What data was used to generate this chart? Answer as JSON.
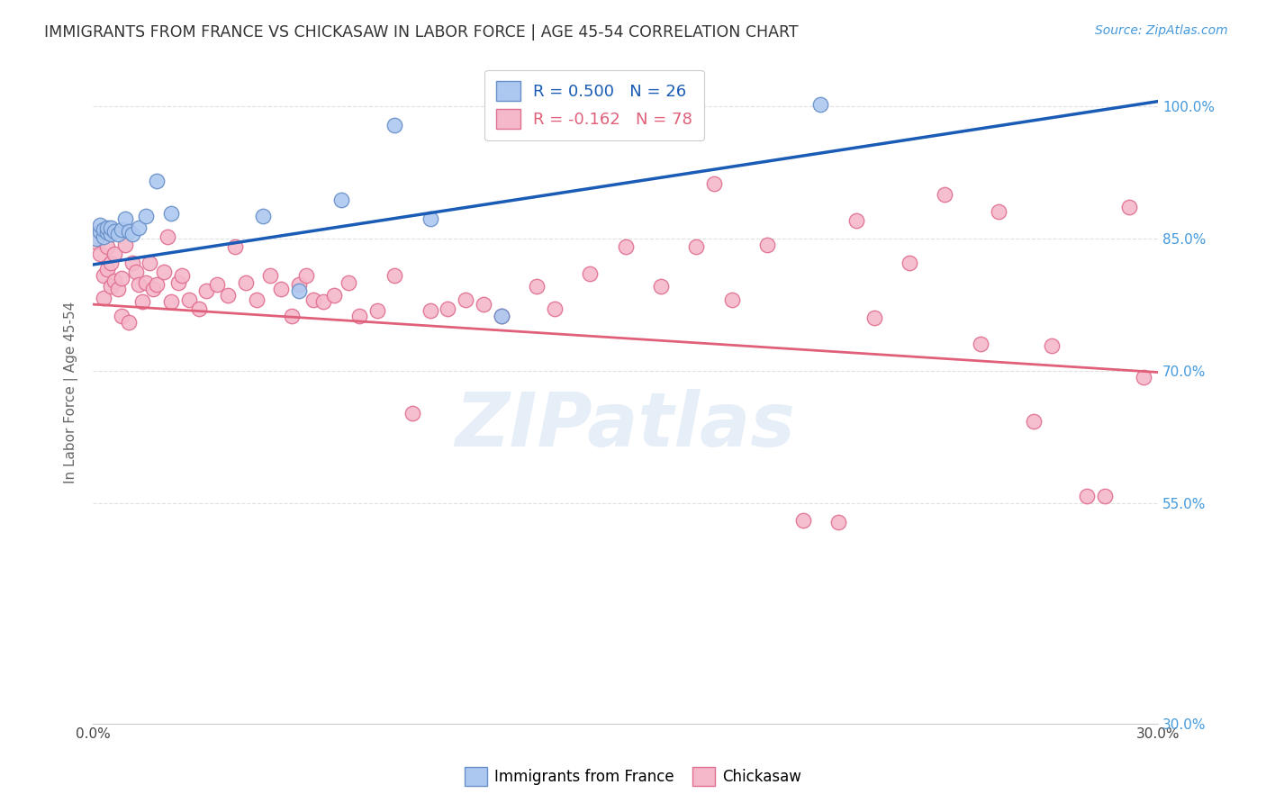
{
  "title": "IMMIGRANTS FROM FRANCE VS CHICKASAW IN LABOR FORCE | AGE 45-54 CORRELATION CHART",
  "source": "Source: ZipAtlas.com",
  "ylabel": "In Labor Force | Age 45-54",
  "xmin": 0.0,
  "xmax": 0.3,
  "ymin": 0.3,
  "ymax": 1.05,
  "xticks": [
    0.0,
    0.05,
    0.1,
    0.15,
    0.2,
    0.25,
    0.3
  ],
  "xticklabels": [
    "0.0%",
    "",
    "",
    "",
    "",
    "",
    "30.0%"
  ],
  "yticks": [
    0.3,
    0.55,
    0.7,
    0.85,
    1.0
  ],
  "yticklabels": [
    "30.0%",
    "55.0%",
    "70.0%",
    "85.0%",
    "100.0%"
  ],
  "france_R": 0.5,
  "france_N": 26,
  "chickasaw_R": -0.162,
  "chickasaw_N": 78,
  "legend_label_france": "Immigrants from France",
  "legend_label_chickasaw": "Chickasaw",
  "france_color": "#adc8f0",
  "chickasaw_color": "#f5b8ca",
  "france_edge": "#6890c8",
  "chickasaw_edge": "#e07090",
  "france_line_color": "#1a5bb5",
  "chickasaw_line_color": "#e0607a",
  "france_line_x0": 0.0,
  "france_line_y0": 0.82,
  "france_line_x1": 0.3,
  "france_line_y1": 1.005,
  "chickasaw_line_x0": 0.0,
  "chickasaw_line_y0": 0.775,
  "chickasaw_line_x1": 0.3,
  "chickasaw_line_y1": 0.698,
  "france_points_x": [
    0.001,
    0.002,
    0.002,
    0.003,
    0.003,
    0.004,
    0.004,
    0.005,
    0.005,
    0.006,
    0.007,
    0.008,
    0.009,
    0.01,
    0.011,
    0.013,
    0.015,
    0.018,
    0.022,
    0.048,
    0.058,
    0.07,
    0.085,
    0.095,
    0.115,
    0.205
  ],
  "france_points_y": [
    0.85,
    0.858,
    0.865,
    0.852,
    0.86,
    0.857,
    0.862,
    0.855,
    0.862,
    0.858,
    0.855,
    0.86,
    0.872,
    0.858,
    0.855,
    0.862,
    0.875,
    0.915,
    0.878,
    0.875,
    0.79,
    0.893,
    0.978,
    0.872,
    0.762,
    1.002
  ],
  "chickasaw_points_x": [
    0.001,
    0.002,
    0.002,
    0.003,
    0.003,
    0.004,
    0.004,
    0.005,
    0.005,
    0.006,
    0.006,
    0.007,
    0.008,
    0.008,
    0.009,
    0.01,
    0.011,
    0.012,
    0.013,
    0.014,
    0.015,
    0.016,
    0.017,
    0.018,
    0.02,
    0.021,
    0.022,
    0.024,
    0.025,
    0.027,
    0.03,
    0.032,
    0.035,
    0.038,
    0.04,
    0.043,
    0.046,
    0.05,
    0.053,
    0.056,
    0.058,
    0.06,
    0.062,
    0.065,
    0.068,
    0.072,
    0.075,
    0.08,
    0.085,
    0.09,
    0.095,
    0.1,
    0.105,
    0.11,
    0.115,
    0.125,
    0.13,
    0.14,
    0.15,
    0.16,
    0.17,
    0.175,
    0.18,
    0.19,
    0.2,
    0.21,
    0.215,
    0.22,
    0.23,
    0.24,
    0.25,
    0.255,
    0.265,
    0.27,
    0.28,
    0.285,
    0.292,
    0.296
  ],
  "chickasaw_points_y": [
    0.845,
    0.858,
    0.832,
    0.782,
    0.808,
    0.84,
    0.815,
    0.795,
    0.822,
    0.832,
    0.802,
    0.792,
    0.762,
    0.805,
    0.842,
    0.755,
    0.822,
    0.812,
    0.798,
    0.778,
    0.8,
    0.822,
    0.792,
    0.798,
    0.812,
    0.852,
    0.778,
    0.8,
    0.808,
    0.78,
    0.77,
    0.79,
    0.798,
    0.785,
    0.84,
    0.8,
    0.78,
    0.808,
    0.792,
    0.762,
    0.798,
    0.808,
    0.78,
    0.778,
    0.785,
    0.8,
    0.762,
    0.768,
    0.808,
    0.652,
    0.768,
    0.77,
    0.78,
    0.775,
    0.762,
    0.795,
    0.77,
    0.81,
    0.84,
    0.795,
    0.84,
    0.912,
    0.78,
    0.842,
    0.53,
    0.528,
    0.87,
    0.76,
    0.822,
    0.9,
    0.73,
    0.88,
    0.642,
    0.728,
    0.558,
    0.558,
    0.885,
    0.692
  ],
  "watermark": "ZIPatlas",
  "background_color": "#ffffff",
  "grid_color": "#e0e0e0"
}
